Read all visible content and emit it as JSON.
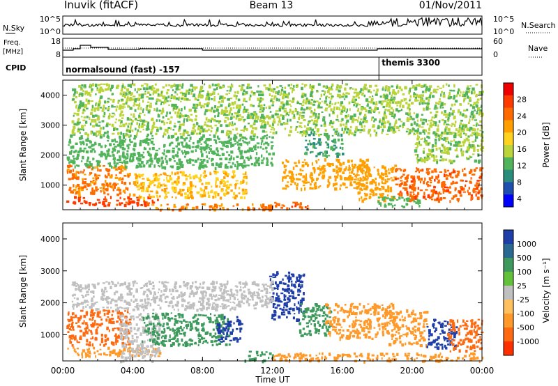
{
  "header": {
    "station": "Inuvik (fitACF)",
    "beam": "Beam 13",
    "date": "01/Nov/2011"
  },
  "top_panels": {
    "nsky": {
      "left_label": "N.Sky",
      "right_label": "N.Search",
      "left_ticks": [
        "10^5",
        "10^0"
      ],
      "right_ticks": [
        "10^5",
        "10^0"
      ]
    },
    "freq": {
      "left_label_1": "Freq.",
      "left_label_2": "[MHz]",
      "right_label": "Nave",
      "left_ticks": [
        "18",
        "8"
      ],
      "right_ticks": [
        "60",
        "0"
      ]
    },
    "cpid": {
      "label": "CPID",
      "modes": [
        {
          "name": "normalsound (fast) -157",
          "start_hour": 0
        },
        {
          "name": "themis 3300",
          "start_hour": 18.1
        }
      ]
    }
  },
  "chart_data": [
    {
      "type": "heatmap",
      "name": "power",
      "ylabel": "Slant Range [km]",
      "ylim": [
        180,
        4500
      ],
      "yticks": [
        "1000",
        "2000",
        "3000",
        "4000"
      ],
      "colorbar_label": "Power [dB]",
      "colorbar_ticks": [
        "4",
        "8",
        "12",
        "16",
        "20",
        "24",
        "28"
      ],
      "colorbar_colors": [
        "#0000ff",
        "#1f4fae",
        "#2a8c7a",
        "#52b45a",
        "#bad43a",
        "#ffd21e",
        "#ffa000",
        "#ff6a00",
        "#ff3a00",
        "#ee0000"
      ],
      "scatter_clusters": [
        {
          "x": [
            0.2,
            5.5
          ],
          "y": [
            350,
            650
          ],
          "value": 28
        },
        {
          "x": [
            0.2,
            3.8
          ],
          "y": [
            700,
            1700
          ],
          "value": 24
        },
        {
          "x": [
            4.0,
            10.5
          ],
          "y": [
            600,
            1500
          ],
          "value": 20
        },
        {
          "x": [
            0.2,
            12.0
          ],
          "y": [
            1600,
            2700
          ],
          "value": 12
        },
        {
          "x": [
            5.0,
            12.0
          ],
          "y": [
            200,
            400
          ],
          "value": 24
        },
        {
          "x": [
            11.5,
            14.0
          ],
          "y": [
            250,
            450
          ],
          "value": 26
        },
        {
          "x": [
            12.5,
            17.5
          ],
          "y": [
            900,
            1900
          ],
          "value": 22
        },
        {
          "x": [
            13.8,
            16.0
          ],
          "y": [
            2000,
            2800
          ],
          "value": 10
        },
        {
          "x": [
            16.8,
            19.0
          ],
          "y": [
            500,
            1700
          ],
          "value": 22
        },
        {
          "x": [
            18.0,
            20.5
          ],
          "y": [
            300,
            650
          ],
          "value": 12
        },
        {
          "x": [
            19.0,
            24.0
          ],
          "y": [
            500,
            1600
          ],
          "value": 26
        },
        {
          "x": [
            20.0,
            24.0
          ],
          "y": [
            1800,
            2800
          ],
          "value": 14
        },
        {
          "x": [
            0.5,
            24.0
          ],
          "y": [
            2700,
            4400
          ],
          "value": 14
        }
      ]
    },
    {
      "type": "heatmap",
      "name": "velocity",
      "ylabel": "Slant Range [km]",
      "ylim": [
        180,
        4500
      ],
      "yticks": [
        "1000",
        "2000",
        "3000",
        "4000"
      ],
      "colorbar_label": "Velocity [m s⁻¹]",
      "colorbar_ticks": [
        "1000",
        "500",
        "100",
        "25",
        "-25",
        "-100",
        "-500",
        "-1000"
      ],
      "colorbar_colors": [
        "#1e3ea8",
        "#2a6a92",
        "#3d9a5c",
        "#62c03a",
        "#c0c0c0",
        "#ffc060",
        "#ff9a2a",
        "#ff6a10",
        "#ff3000"
      ],
      "scatter_clusters": [
        {
          "x": [
            0.2,
            3.8
          ],
          "y": [
            700,
            1800
          ],
          "value": -500
        },
        {
          "x": [
            0.2,
            5.5
          ],
          "y": [
            350,
            650
          ],
          "value": -100
        },
        {
          "x": [
            3.2,
            5.5
          ],
          "y": [
            200,
            1700
          ],
          "value": 0
        },
        {
          "x": [
            4.5,
            9.5
          ],
          "y": [
            700,
            1700
          ],
          "value": 300
        },
        {
          "x": [
            8.8,
            10.2
          ],
          "y": [
            800,
            1600
          ],
          "value": 1000
        },
        {
          "x": [
            10.2,
            12.0
          ],
          "y": [
            200,
            500
          ],
          "value": 100
        },
        {
          "x": [
            11.8,
            13.8
          ],
          "y": [
            1500,
            3000
          ],
          "value": 1000
        },
        {
          "x": [
            13.5,
            15.3
          ],
          "y": [
            1000,
            2000
          ],
          "value": 400
        },
        {
          "x": [
            15.0,
            19.0
          ],
          "y": [
            900,
            2000
          ],
          "value": -400
        },
        {
          "x": [
            18.5,
            20.8
          ],
          "y": [
            700,
            1800
          ],
          "value": -300
        },
        {
          "x": [
            20.8,
            22.5
          ],
          "y": [
            600,
            1500
          ],
          "value": 1000
        },
        {
          "x": [
            22.0,
            24.0
          ],
          "y": [
            500,
            1500
          ],
          "value": -800
        },
        {
          "x": [
            12.0,
            24.0
          ],
          "y": [
            200,
            450
          ],
          "value": -100
        },
        {
          "x": [
            0.5,
            12.0
          ],
          "y": [
            1800,
            2700
          ],
          "value": 0
        }
      ]
    }
  ],
  "x_axis": {
    "label": "Time UT",
    "ticks": [
      "00:00",
      "04:00",
      "08:00",
      "12:00",
      "16:00",
      "20:00",
      "00:00"
    ]
  }
}
